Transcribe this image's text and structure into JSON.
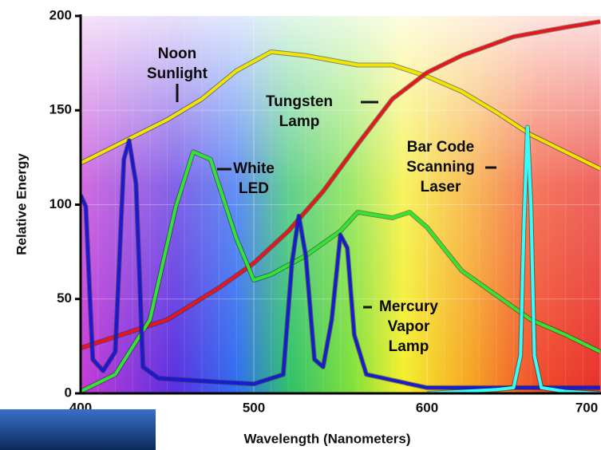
{
  "chart_data": {
    "type": "line",
    "x_label": "Wavelength (Nanometers)",
    "y_label": "Relative Energy",
    "xlim": [
      400,
      700
    ],
    "ylim": [
      0,
      200
    ],
    "xticks": [
      400,
      500,
      600,
      700
    ],
    "yticks": [
      0,
      50,
      100,
      150,
      200
    ],
    "grid": true,
    "series": [
      {
        "color": "#f2e600",
        "x": [
          400,
          450,
          470,
          490,
          510,
          530,
          560,
          580,
          600,
          620,
          640,
          660,
          680,
          700
        ],
        "values": [
          122,
          145,
          156,
          171,
          181,
          179,
          174,
          174,
          168,
          160,
          149,
          137,
          128,
          119
        ]
      },
      {
        "color": "#e8161b",
        "x": [
          400,
          450,
          480,
          500,
          520,
          540,
          560,
          580,
          600,
          620,
          650,
          680,
          700
        ],
        "values": [
          24,
          39,
          56,
          69,
          86,
          107,
          132,
          156,
          170,
          179,
          189,
          194,
          197
        ]
      },
      {
        "color": "#33e533",
        "x": [
          400,
          420,
          440,
          455,
          465,
          475,
          490,
          500,
          510,
          530,
          550,
          560,
          580,
          590,
          600,
          620,
          640,
          660,
          680,
          700
        ],
        "values": [
          1,
          10,
          39,
          99,
          128,
          124,
          82,
          60,
          63,
          73,
          86,
          96,
          93,
          96,
          88,
          65,
          52,
          39,
          31,
          22
        ]
      },
      {
        "color": "#1a1ad0",
        "x": [
          400,
          403,
          407,
          413,
          420,
          425,
          428,
          432,
          436,
          445,
          480,
          500,
          517,
          522,
          526,
          530,
          535,
          540,
          545,
          550,
          554,
          558,
          565,
          600,
          650,
          700
        ],
        "values": [
          105,
          99,
          18,
          12,
          22,
          124,
          134,
          111,
          14,
          8,
          6,
          5,
          10,
          69,
          94,
          73,
          18,
          14,
          39,
          84,
          77,
          31,
          10,
          3,
          3,
          3
        ]
      },
      {
        "color": "#33ffff",
        "x": [
          600,
          640,
          650,
          654,
          656,
          658,
          660,
          662,
          666,
          680,
          700
        ],
        "values": [
          0,
          2,
          3,
          20,
          90,
          141,
          100,
          20,
          3,
          1,
          0
        ]
      }
    ],
    "annotations": [
      {
        "lines": [
          "Noon",
          "Sunlight"
        ]
      },
      {
        "lines": [
          "Tungsten",
          "Lamp"
        ]
      },
      {
        "lines": [
          "White",
          "LED"
        ]
      },
      {
        "lines": [
          "Bar Code",
          "Scanning",
          "Laser"
        ]
      },
      {
        "lines": [
          "Mercury",
          "Vapor",
          "Lamp"
        ]
      }
    ]
  }
}
